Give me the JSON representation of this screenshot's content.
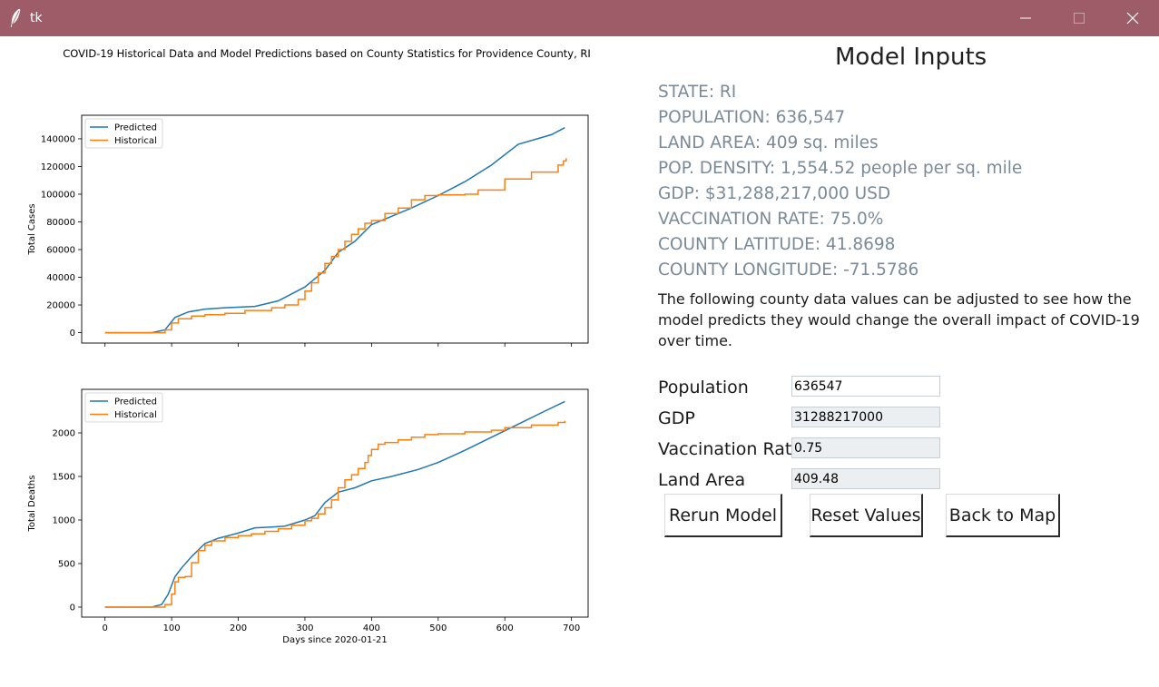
{
  "window": {
    "title": "tk"
  },
  "plot": {
    "title": "COVID-19 Historical Data and Model Predictions based on County Statistics for Providence County, RI"
  },
  "model_inputs": {
    "heading": "Model Inputs",
    "info": [
      "STATE: RI",
      "POPULATION: 636,547",
      "LAND AREA: 409 sq. miles",
      "POP. DENSITY: 1,554.52 people per sq. mile",
      "GDP: $31,288,217,000 USD",
      "VACCINATION RATE: 75.0%",
      "COUNTY LATITUDE: 41.8698",
      "COUNTY LONGITUDE: -71.5786"
    ],
    "note": "The following county data values can be adjusted to see how the model predicts they would change the overall impact of COVID-19 over time.",
    "fields": [
      {
        "label": "Population",
        "value": "636547"
      },
      {
        "label": "GDP",
        "value": "31288217000"
      },
      {
        "label": "Vaccination Rate",
        "value": "0.75"
      },
      {
        "label": "Land Area",
        "value": "409.48"
      }
    ],
    "buttons": {
      "rerun": "Rerun Model",
      "reset": "Reset Values",
      "back": "Back to Map"
    }
  },
  "colors": {
    "titlebar": "#9e5c68",
    "predicted": "#1f77b4",
    "historical": "#ff7f0e",
    "info_text": "#7b8a97"
  },
  "chart_data": [
    {
      "type": "line",
      "title": "",
      "xlabel": "",
      "ylabel": "Total Cases",
      "xlim": [
        -35,
        725
      ],
      "ylim": [
        -7500,
        157000
      ],
      "yticks": [
        0,
        20000,
        40000,
        60000,
        80000,
        100000,
        120000,
        140000
      ],
      "xticks": [
        0,
        100,
        200,
        300,
        400,
        500,
        600,
        700
      ],
      "show_xticklabels": false,
      "legend": "top-left",
      "series": [
        {
          "name": "Predicted",
          "color": "#1f77b4",
          "step": false,
          "x": [
            0,
            70,
            90,
            105,
            125,
            150,
            180,
            225,
            260,
            300,
            330,
            350,
            375,
            400,
            420,
            460,
            500,
            540,
            580,
            620,
            670,
            690
          ],
          "y": [
            0,
            0,
            2000,
            11000,
            15000,
            17000,
            18000,
            19000,
            23000,
            33000,
            45000,
            58000,
            66000,
            78000,
            82000,
            90000,
            99000,
            109000,
            121000,
            136000,
            143000,
            148000
          ]
        },
        {
          "name": "Historical",
          "color": "#ff7f0e",
          "step": true,
          "x": [
            0,
            70,
            90,
            100,
            110,
            130,
            150,
            180,
            210,
            250,
            270,
            290,
            300,
            310,
            320,
            330,
            340,
            350,
            360,
            370,
            380,
            390,
            400,
            420,
            440,
            460,
            480,
            500,
            540,
            560,
            600,
            640,
            680,
            688,
            692
          ],
          "y": [
            0,
            0,
            2000,
            7000,
            10000,
            12000,
            13000,
            14000,
            16000,
            18000,
            20000,
            24000,
            30000,
            36000,
            43000,
            50000,
            55000,
            60000,
            66000,
            71000,
            75000,
            79000,
            81000,
            86000,
            90000,
            96000,
            99000,
            99500,
            100000,
            103000,
            111000,
            116000,
            121000,
            124000,
            126000
          ]
        }
      ]
    },
    {
      "type": "line",
      "title": "",
      "xlabel": "Days since 2020-01-21",
      "ylabel": "Total Deaths",
      "xlim": [
        -35,
        725
      ],
      "ylim": [
        -115,
        2500
      ],
      "yticks": [
        0,
        500,
        1000,
        1500,
        2000
      ],
      "xticks": [
        0,
        100,
        200,
        300,
        400,
        500,
        600,
        700
      ],
      "show_xticklabels": true,
      "legend": "top-left",
      "series": [
        {
          "name": "Predicted",
          "color": "#1f77b4",
          "step": false,
          "x": [
            0,
            70,
            85,
            95,
            105,
            115,
            130,
            150,
            170,
            200,
            225,
            250,
            270,
            300,
            315,
            330,
            350,
            375,
            400,
            430,
            470,
            500,
            540,
            580,
            620,
            660,
            690
          ],
          "y": [
            0,
            0,
            30,
            150,
            350,
            450,
            580,
            730,
            790,
            850,
            910,
            920,
            930,
            1000,
            1050,
            1200,
            1320,
            1370,
            1450,
            1500,
            1580,
            1660,
            1800,
            1950,
            2100,
            2250,
            2360
          ]
        },
        {
          "name": "Historical",
          "color": "#ff7f0e",
          "step": true,
          "x": [
            0,
            70,
            90,
            100,
            105,
            110,
            120,
            130,
            140,
            150,
            160,
            180,
            200,
            220,
            240,
            260,
            280,
            300,
            310,
            320,
            330,
            340,
            350,
            360,
            370,
            380,
            390,
            395,
            400,
            410,
            420,
            440,
            460,
            480,
            500,
            540,
            580,
            600,
            640,
            680,
            690
          ],
          "y": [
            0,
            0,
            30,
            150,
            290,
            340,
            350,
            510,
            650,
            710,
            760,
            800,
            820,
            840,
            870,
            900,
            940,
            990,
            1020,
            1070,
            1140,
            1230,
            1370,
            1460,
            1520,
            1590,
            1660,
            1740,
            1810,
            1870,
            1890,
            1920,
            1950,
            1980,
            1990,
            2010,
            2030,
            2060,
            2090,
            2120,
            2140
          ]
        }
      ]
    }
  ]
}
